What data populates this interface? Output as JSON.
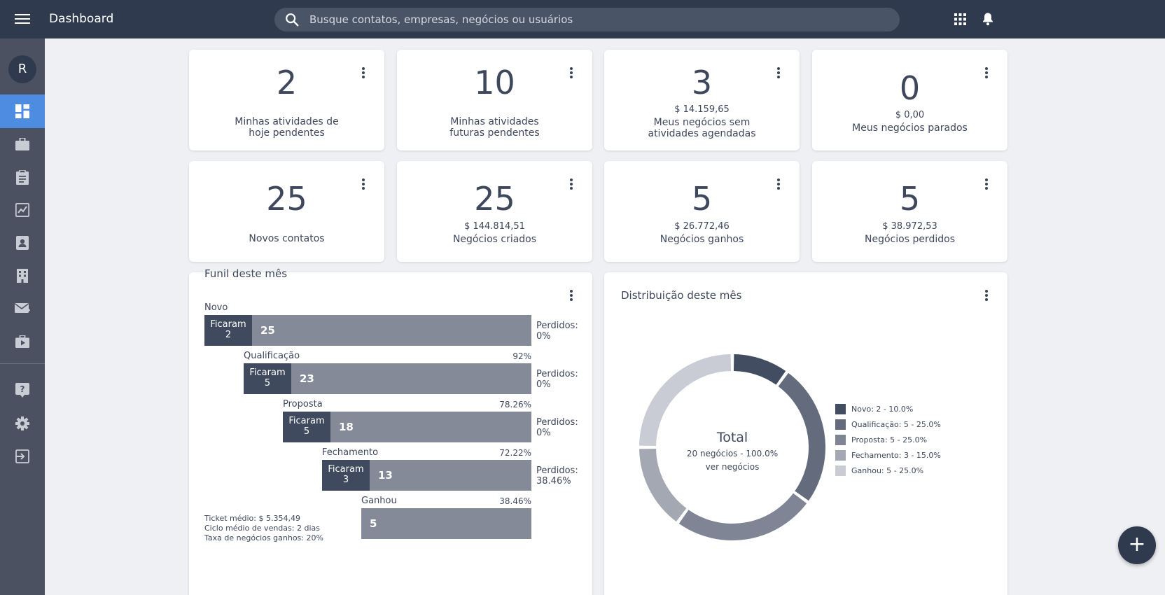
{
  "header": {
    "title": "Dashboard",
    "search_placeholder": "Busque contatos, empresas, negócios ou usuários"
  },
  "sidebar": {
    "avatar_initial": "R",
    "items": [
      {
        "icon": "dashboard-icon",
        "active": true
      },
      {
        "icon": "briefcase-icon"
      },
      {
        "icon": "clipboard-icon"
      },
      {
        "icon": "trend-chart-icon"
      },
      {
        "icon": "contact-card-icon"
      },
      {
        "icon": "building-icon"
      },
      {
        "icon": "mail-icon"
      },
      {
        "icon": "video-icon"
      },
      {
        "icon": "help-icon"
      },
      {
        "icon": "settings-icon"
      },
      {
        "icon": "logout-icon"
      }
    ]
  },
  "stats": [
    {
      "value": "2",
      "amount": "",
      "label": "Minhas atividades de hoje pendentes"
    },
    {
      "value": "10",
      "amount": "",
      "label": "Minhas atividades futuras pendentes"
    },
    {
      "value": "3",
      "amount": "$ 14.159,65",
      "label": "Meus negócios sem atividades agendadas"
    },
    {
      "value": "0",
      "amount": "$ 0,00",
      "label": "Meus negócios parados"
    },
    {
      "value": "25",
      "amount": "",
      "label": "Novos contatos"
    },
    {
      "value": "25",
      "amount": "$ 144.814,51",
      "label": "Negócios criados"
    },
    {
      "value": "5",
      "amount": "$ 26.772,46",
      "label": "Negócios ganhos"
    },
    {
      "value": "5",
      "amount": "$ 38.972,53",
      "label": "Negócios perdidos"
    }
  ],
  "funnel": {
    "title": "Funil deste mês",
    "stay_label": "Ficaram",
    "stages": [
      {
        "name": "Novo",
        "pct": "",
        "stayed": "2",
        "count": "25",
        "lost": "Perdidos:",
        "lost_pct": "0%"
      },
      {
        "name": "Qualificação",
        "pct": "92%",
        "stayed": "5",
        "count": "23",
        "lost": "Perdidos:",
        "lost_pct": "0%"
      },
      {
        "name": "Proposta",
        "pct": "78.26%",
        "stayed": "5",
        "count": "18",
        "lost": "Perdidos:",
        "lost_pct": "0%"
      },
      {
        "name": "Fechamento",
        "pct": "72.22%",
        "stayed": "3",
        "count": "13",
        "lost": "Perdidos:",
        "lost_pct": "38.46%"
      },
      {
        "name": "Ganhou",
        "pct": "38.46%",
        "stayed": "",
        "count": "5",
        "lost": "",
        "lost_pct": ""
      }
    ],
    "footer": [
      "Ticket médio: $ 5.354,49",
      "Ciclo médio de vendas: 2 dias",
      "Taxa de negócios ganhos: 20%"
    ]
  },
  "distribution": {
    "title": "Distribuição deste mês",
    "total_title": "Total",
    "total_sub": "20 negócios - 100.0%",
    "total_link": "ver negócios",
    "legend": [
      {
        "label": "Novo: 2 - 10.0%",
        "color": "#434d62"
      },
      {
        "label": "Qualificação: 5 - 25.0%",
        "color": "#636b7d"
      },
      {
        "label": "Proposta: 5 - 25.0%",
        "color": "#7f8594"
      },
      {
        "label": "Fechamento: 3 - 15.0%",
        "color": "#a4a8b3"
      },
      {
        "label": "Ganhou: 5 - 25.0%",
        "color": "#c9ccd4"
      }
    ]
  },
  "chart_data": {
    "type": "pie",
    "categories": [
      "Novo",
      "Qualificação",
      "Proposta",
      "Fechamento",
      "Ganhou"
    ],
    "values": [
      2,
      5,
      5,
      3,
      5
    ],
    "colors": [
      "#434d62",
      "#636b7d",
      "#7f8594",
      "#a4a8b3",
      "#c9ccd4"
    ],
    "title": "Distribuição deste mês",
    "donut": true,
    "legend_position": "right"
  },
  "fab_symbol": "+"
}
